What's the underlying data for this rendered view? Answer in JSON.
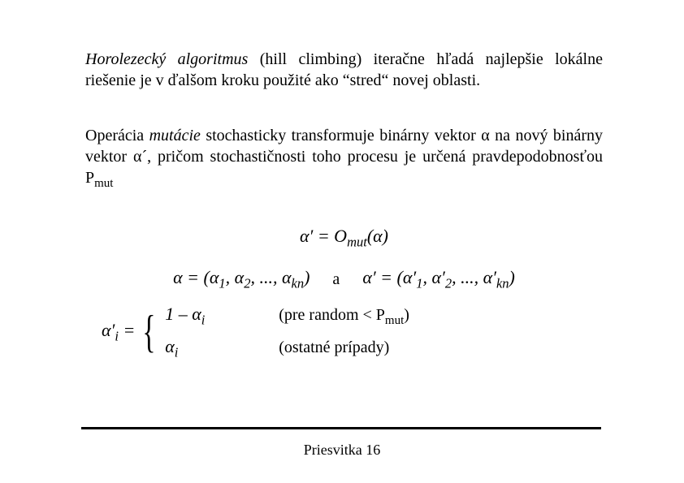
{
  "para1": {
    "lead_italic": "Horolezecký algoritmus",
    "rest": " (hill climbing) iteračne hľadá najlepšie lokálne riešenie je v ďalšom kroku použité ako “stred“ novej oblasti."
  },
  "para2": {
    "pre": "Operácia ",
    "mutacie": "mutácie",
    "post": " stochasticky transformuje binárny vektor α na nový binárny vektor α´, pričom stochastičnosti toho procesu je určená pravdepodobnosťou P",
    "sub": "mut"
  },
  "eq1": "α′ = O",
  "eq1_sub": "mut",
  "eq1_tail": "(α)",
  "eq2_left_open": "α = (α",
  "eq2_items": [
    "1",
    "2"
  ],
  "eq2_dots": ", ...,",
  "eq2_kn": "kn",
  "eq2_close": ")",
  "eq2_mid": "a",
  "eq2_right_open": "α′ = (α′",
  "eq2_right_items": [
    "1",
    "2"
  ],
  "eq2_right_kn": "kn",
  "pw_lhs_a": "α′",
  "pw_lhs_sub": "i",
  "pw_eq": " = ",
  "case1_lhs": "1 – α",
  "case1_sub": "i",
  "case1_cond_open": "(pre random < P",
  "case1_cond_sub": "mut",
  "case1_cond_close": ")",
  "case2_lhs": "α",
  "case2_sub": "i",
  "case2_cond": "(ostatné prípady)",
  "footer": "Priesvitka 16",
  "colors": {
    "text": "#000000",
    "bg": "#ffffff",
    "rule": "#000000"
  }
}
